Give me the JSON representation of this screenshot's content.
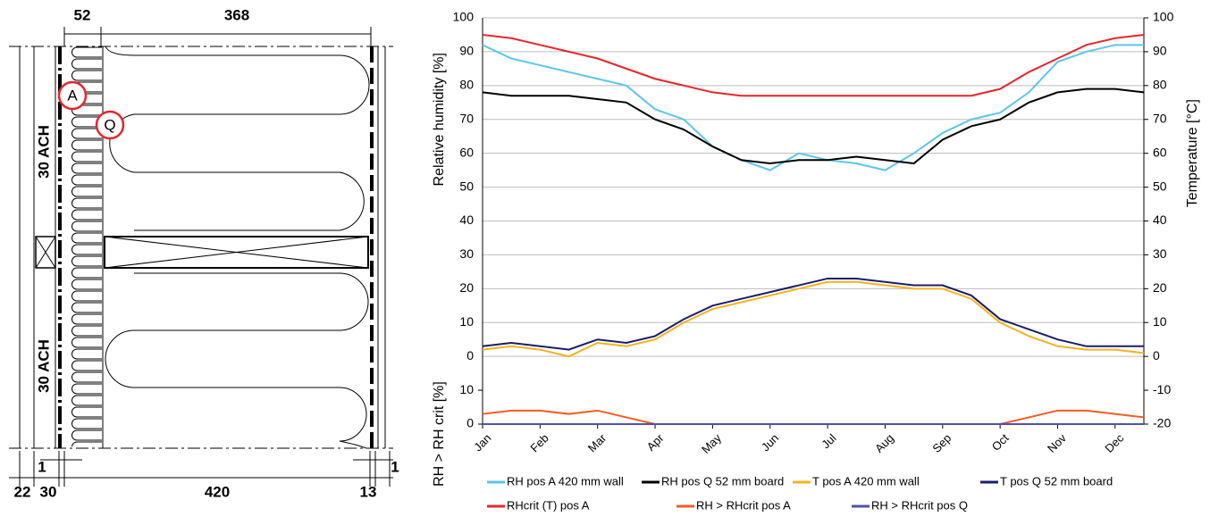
{
  "diagram": {
    "top_left": "52",
    "top_right": "368",
    "bottom_left_gap": "1",
    "bottom_right_gap": "1",
    "bottom_22": "22",
    "bottom_30": "30",
    "bottom_420": "420",
    "bottom_13": "13",
    "ach_top": "30 ACH",
    "ach_bottom": "30 ACH",
    "point_a": "A",
    "point_q": "Q"
  },
  "chart_data": {
    "type": "line",
    "y_label": "Relative humidity [%]",
    "y3_label": "RH > RH crit [%]",
    "y2_label": "Temperature [°C]",
    "categories": [
      "Jan",
      null,
      "Feb",
      null,
      "Mar",
      null,
      "Apr",
      null,
      "May",
      null,
      "Jun",
      null,
      "Jul",
      null,
      "Aug",
      null,
      "Sep",
      null,
      "Oct",
      null,
      "Nov",
      null,
      "Dec",
      null
    ],
    "ylim": [
      -20,
      100
    ],
    "yticks": [
      0,
      10,
      20,
      30,
      40,
      50,
      60,
      70,
      80,
      90,
      100
    ],
    "y2lim": [
      -20,
      100
    ],
    "y2ticks": [
      -20,
      -10,
      0,
      10,
      20,
      30,
      40,
      50,
      60,
      70,
      80,
      90,
      100
    ],
    "y3lim": [
      0,
      120
    ],
    "y3ticks": [
      0,
      10
    ],
    "grid": true,
    "series": [
      {
        "name": "RH pos A 420 mm wall",
        "color": "#5cc6ec",
        "axis": "y",
        "values": [
          92,
          88,
          86,
          84,
          82,
          80,
          73,
          70,
          62,
          58,
          55,
          60,
          58,
          57,
          55,
          60,
          66,
          70,
          72,
          78,
          87,
          90,
          92,
          92
        ]
      },
      {
        "name": "RH pos Q 52 mm board",
        "color": "#000000",
        "axis": "y",
        "values": [
          78,
          77,
          77,
          77,
          76,
          75,
          70,
          67,
          62,
          58,
          57,
          58,
          58,
          59,
          58,
          57,
          64,
          68,
          70,
          75,
          78,
          79,
          79,
          78
        ]
      },
      {
        "name": "T pos A 420 mm wall",
        "color": "#f5b21d",
        "axis": "y2",
        "values": [
          2,
          3,
          2,
          0,
          4,
          3,
          5,
          10,
          14,
          16,
          18,
          20,
          22,
          22,
          21,
          20,
          20,
          17,
          10,
          6,
          3,
          2,
          2,
          1
        ]
      },
      {
        "name": "T pos Q 52 mm board",
        "color": "#1c1c6b",
        "axis": "y2",
        "values": [
          3,
          4,
          3,
          2,
          5,
          4,
          6,
          11,
          15,
          17,
          19,
          21,
          23,
          23,
          22,
          21,
          21,
          18,
          11,
          8,
          5,
          3,
          3,
          3
        ]
      },
      {
        "name": "RHcrit (T) pos A",
        "color": "#e8262a",
        "axis": "y",
        "values": [
          95,
          94,
          92,
          90,
          88,
          85,
          82,
          80,
          78,
          77,
          77,
          77,
          77,
          77,
          77,
          77,
          77,
          77,
          79,
          84,
          88,
          92,
          94,
          95
        ]
      },
      {
        "name": "RH > RHcrit pos A",
        "color": "#f25c1f",
        "axis": "y3",
        "values": [
          3,
          4,
          4,
          3,
          4,
          2,
          0,
          0,
          0,
          0,
          0,
          0,
          0,
          0,
          0,
          0,
          0,
          0,
          0,
          2,
          4,
          4,
          3,
          2
        ]
      },
      {
        "name": "RH > RHcrit pos Q",
        "color": "#5050b0",
        "axis": "y3",
        "values": [
          0,
          0,
          0,
          0,
          0,
          0,
          0,
          0,
          0,
          0,
          0,
          0,
          0,
          0,
          0,
          0,
          0,
          0,
          0,
          0,
          0,
          0,
          0,
          0
        ]
      }
    ]
  }
}
